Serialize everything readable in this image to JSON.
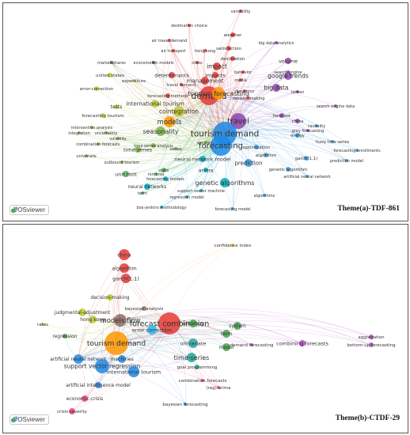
{
  "panel_a": {
    "caption": "Theme(a)-TDF-861",
    "brand": "VOSviewer",
    "nodes": [
      {
        "label": "variability",
        "color": "#e53935"
      },
      {
        "label": "destination choice",
        "color": "#e53935"
      },
      {
        "label": "air travel demand",
        "color": "#e53935"
      },
      {
        "label": "weather",
        "color": "#e53935"
      },
      {
        "label": "big data analytics",
        "color": "#8e44ad"
      },
      {
        "label": "air transport",
        "color": "#e53935"
      },
      {
        "label": "hong kong",
        "color": "#e53935"
      },
      {
        "label": "satisfaction",
        "color": "#e53935"
      },
      {
        "label": "market shares",
        "color": "#6d4c41"
      },
      {
        "label": "econometric models",
        "color": "#6d4c41"
      },
      {
        "label": "cities",
        "color": "#e53935"
      },
      {
        "label": "destination",
        "color": "#e53935"
      },
      {
        "label": "volume",
        "color": "#8e44ad"
      },
      {
        "label": "united states",
        "color": "#c0ca33"
      },
      {
        "label": "expenditure",
        "color": "#c0ca33"
      },
      {
        "label": "determinants",
        "color": "#e53935"
      },
      {
        "label": "impact",
        "color": "#e53935"
      },
      {
        "label": "behavior",
        "color": "#e53935"
      },
      {
        "label": "search engine",
        "color": "#8e44ad"
      },
      {
        "label": "impacts",
        "color": "#e53935"
      },
      {
        "label": "google trends",
        "color": "#8e44ad"
      },
      {
        "label": "error-correction",
        "color": "#c0ca33"
      },
      {
        "label": "travel demand",
        "color": "#e53935"
      },
      {
        "label": "management",
        "color": "#e53935"
      },
      {
        "label": "media",
        "color": "#e53935"
      },
      {
        "label": "taiwan",
        "color": "#8e44ad"
      },
      {
        "label": "dynamics",
        "color": "#e53935"
      },
      {
        "label": "big data",
        "color": "#8e44ad"
      },
      {
        "label": "demand",
        "color": "#e53935"
      },
      {
        "label": "decision making",
        "color": "#e53935"
      },
      {
        "label": "forecasting methods",
        "color": "#e53935"
      },
      {
        "label": "tourism forecasting",
        "color": "#ff9800"
      },
      {
        "label": "international tourism",
        "color": "#c0ca33"
      },
      {
        "label": "search engine data",
        "color": "#8e44ad"
      },
      {
        "label": "tests",
        "color": "#c0ca33"
      },
      {
        "label": "forecast",
        "color": "#8e44ad"
      },
      {
        "label": "models",
        "color": "#ff9800"
      },
      {
        "label": "cointegration",
        "color": "#c0ca33"
      },
      {
        "label": "travel",
        "color": "#8e44ad"
      },
      {
        "label": "forecasting tourism",
        "color": "#c0ca33"
      },
      {
        "label": "intervention analysis",
        "color": "#7cb342"
      },
      {
        "label": "china",
        "color": "#8e44ad"
      },
      {
        "label": "causality",
        "color": "#3498db"
      },
      {
        "label": "integration",
        "color": "#7cb342"
      },
      {
        "label": "uncertainty",
        "color": "#7cb342"
      },
      {
        "label": "tourism demand",
        "color": "#1e88e5"
      },
      {
        "label": "grey forecasting",
        "color": "#8e44ad"
      },
      {
        "label": "energy",
        "color": "#3498db"
      },
      {
        "label": "seasonality",
        "color": "#7cb342"
      },
      {
        "label": "volatility",
        "color": "#7cb342"
      },
      {
        "label": "combination forecasts",
        "color": "#7cb342"
      },
      {
        "label": "time series analysis",
        "color": "#7cb342"
      },
      {
        "label": "accuracy",
        "color": "#7cb342"
      },
      {
        "label": "forecasting",
        "color": "#1e88e5"
      },
      {
        "label": "fuzzy time series",
        "color": "#3498db"
      },
      {
        "label": "series",
        "color": "#7cb342"
      },
      {
        "label": "time series",
        "color": "#7cb342"
      },
      {
        "label": "univariate",
        "color": "#7cb342"
      },
      {
        "label": "optimization",
        "color": "#3498db"
      },
      {
        "label": "garch(1,1)",
        "color": "#3498db"
      },
      {
        "label": "forecasting enrollments",
        "color": "#3498db"
      },
      {
        "label": "algorithm",
        "color": "#3498db"
      },
      {
        "label": "prediction model",
        "color": "#3498db"
      },
      {
        "label": "neural network model",
        "color": "#00acc1"
      },
      {
        "label": "outbound tourism",
        "color": "#7cb342"
      },
      {
        "label": "prediction",
        "color": "#3498db"
      },
      {
        "label": "genetic algorithm",
        "color": "#3498db"
      },
      {
        "label": "state",
        "color": "#4caf50"
      },
      {
        "label": "artificial neural network",
        "color": "#3498db"
      },
      {
        "label": "arima",
        "color": "#00acc1"
      },
      {
        "label": "unit root",
        "color": "#4caf50"
      },
      {
        "label": "romania",
        "color": "#4caf50"
      },
      {
        "label": "forecasting models",
        "color": "#00acc1"
      },
      {
        "label": "genetic algorithms",
        "color": "#00acc1"
      },
      {
        "label": "neural networks",
        "color": "#00acc1"
      },
      {
        "label": "support vector machine",
        "color": "#00acc1"
      },
      {
        "label": "term",
        "color": "#4caf50"
      },
      {
        "label": "regression model",
        "color": "#00acc1"
      },
      {
        "label": "algorithms",
        "color": "#3498db"
      },
      {
        "label": "box-jenkins methodology",
        "color": "#00acc1"
      },
      {
        "label": "forecasting model",
        "color": "#3498db"
      }
    ]
  },
  "panel_b": {
    "caption": "Theme(b)-CTDF-29",
    "brand": "VOSviewer",
    "nodes": [
      {
        "label": "confidence index",
        "color": "#f9a825"
      },
      {
        "label": "china",
        "color": "#e53935"
      },
      {
        "label": "algorithm",
        "color": "#e53935"
      },
      {
        "label": "garch(1,1)",
        "color": "#e53935"
      },
      {
        "label": "decision-making",
        "color": "#c0ca33"
      },
      {
        "label": "bayesian analysis",
        "color": "#8d6e63"
      },
      {
        "label": "judgmental-adjustment",
        "color": "#c0ca33"
      },
      {
        "label": "hong kong",
        "color": "#c0ca33"
      },
      {
        "label": "models flow",
        "color": "#8d6e63"
      },
      {
        "label": "rates",
        "color": "#c0ca33"
      },
      {
        "label": "forecast combination",
        "color": "#e53935"
      },
      {
        "label": "accuracy",
        "color": "#43a047"
      },
      {
        "label": "error correction",
        "color": "#29b6f6"
      },
      {
        "label": "regression",
        "color": "#43a047"
      },
      {
        "label": "term",
        "color": "#43a047"
      },
      {
        "label": "system",
        "color": "#43a047"
      },
      {
        "label": "tourism demand",
        "color": "#ff9800"
      },
      {
        "label": "univariate",
        "color": "#26a69a"
      },
      {
        "label": "model",
        "color": "#43a047"
      },
      {
        "label": "demand forecasting",
        "color": "#ab47bc"
      },
      {
        "label": "combining forecasts",
        "color": "#ab47bc"
      },
      {
        "label": "aggregation",
        "color": "#ab47bc"
      },
      {
        "label": "bottom-up forecasting",
        "color": "#ab47bc"
      },
      {
        "label": "artificial neural network",
        "color": "#1e88e5"
      },
      {
        "label": "machines",
        "color": "#1e88e5"
      },
      {
        "label": "time-series",
        "color": "#26a69a"
      },
      {
        "label": "support vector regression",
        "color": "#1e88e5"
      },
      {
        "label": "goal programming",
        "color": "#26a69a"
      },
      {
        "label": "international tourism",
        "color": "#1e88e5"
      },
      {
        "label": "artificial intelligence model",
        "color": "#1e88e5"
      },
      {
        "label": "combination forecasts",
        "color": "#ec407a"
      },
      {
        "label": "economic-crisis",
        "color": "#ec407a"
      },
      {
        "label": "(reg) arima",
        "color": "#ec407a"
      },
      {
        "label": "crisis severity",
        "color": "#ec407a"
      },
      {
        "label": "bayesian forecasting",
        "color": "#1e88e5"
      }
    ]
  }
}
